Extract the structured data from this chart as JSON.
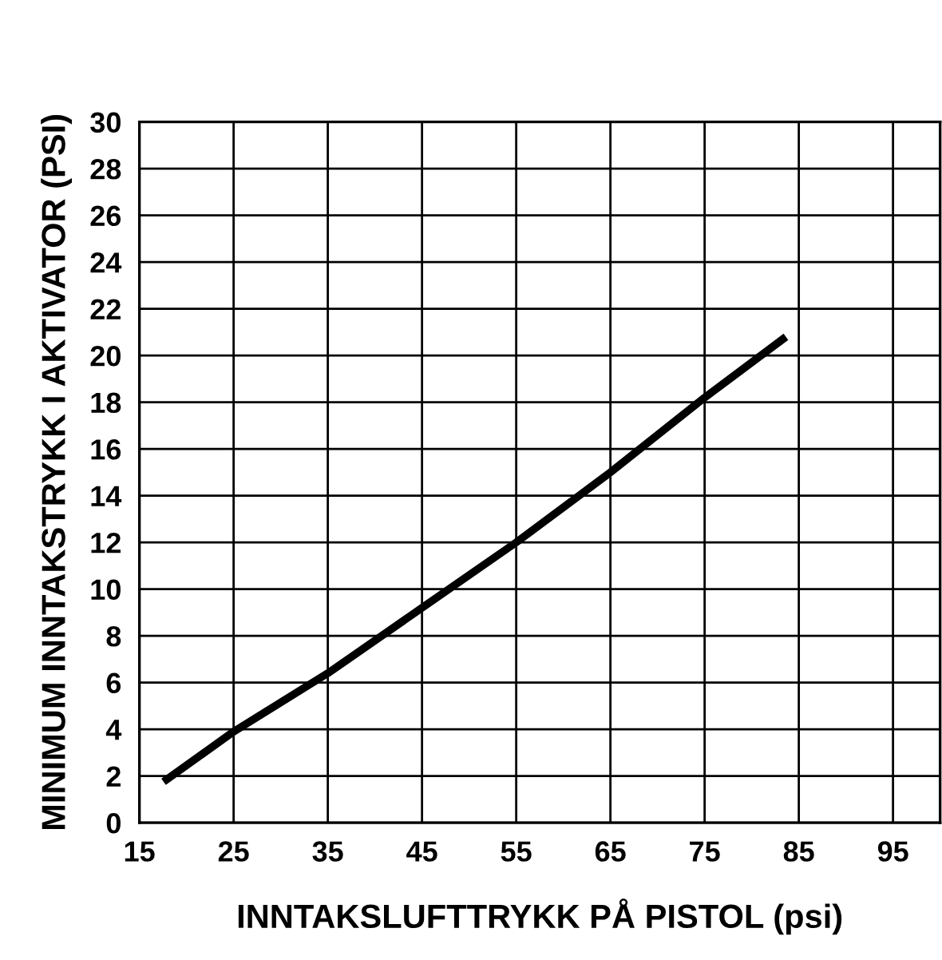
{
  "chart_data": {
    "type": "line",
    "xlabel": "INNTAKSLUFTTRYKK PÅ PISTOL (psi)",
    "ylabel": "MINIMUM INNTAKSTRYKK I AKTIVATOR (PSI)",
    "x": [
      17.9,
      25,
      35,
      45,
      55,
      65,
      75,
      83.3
    ],
    "series": [
      {
        "color": "#000000",
        "values": [
          1.85,
          3.9,
          6.4,
          9.2,
          12,
          15,
          18.2,
          20.7
        ]
      }
    ],
    "xlim": [
      15,
      100
    ],
    "xticks": [
      15,
      25,
      35,
      45,
      55,
      65,
      75,
      85,
      95
    ],
    "ylim": [
      0,
      30
    ],
    "yticks": [
      0,
      2,
      4,
      6,
      8,
      10,
      12,
      14,
      16,
      18,
      20,
      22,
      24,
      26,
      28,
      30
    ],
    "grid": true,
    "legend": false,
    "marker": "none",
    "line_style": "solid"
  }
}
